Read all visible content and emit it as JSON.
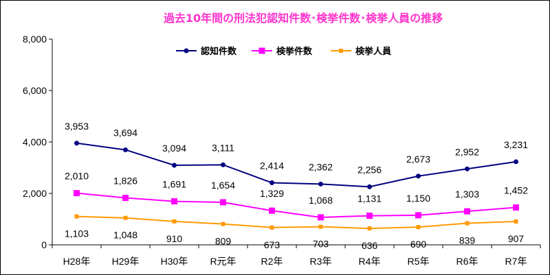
{
  "chart_data": {
    "type": "line",
    "title": "過去10年間の刑法犯認知件数･検挙件数･検挙人員の推移",
    "title_color": "#ff33cc",
    "categories": [
      "H28年",
      "H29年",
      "H30年",
      "R元年",
      "R2年",
      "R3年",
      "R4年",
      "R5年",
      "R6年",
      "R7年"
    ],
    "ylim": [
      0,
      8000
    ],
    "yticks": [
      0,
      2000,
      4000,
      6000,
      8000
    ],
    "ytick_labels": [
      "0",
      "2,000",
      "4,000",
      "6,000",
      "8,000"
    ],
    "grid": false,
    "legend_position": "top-center",
    "series": [
      {
        "name": "認知件数",
        "color": "#000080",
        "marker": "circle",
        "values": [
          3953,
          3694,
          3094,
          3111,
          2414,
          2362,
          2256,
          2673,
          2952,
          3231
        ],
        "labels": [
          "3,953",
          "3,694",
          "3,094",
          "3,111",
          "2,414",
          "2,362",
          "2,256",
          "2,673",
          "2,952",
          "3,231"
        ],
        "label_position": "above"
      },
      {
        "name": "検挙件数",
        "color": "#ff00ff",
        "marker": "square",
        "values": [
          2010,
          1826,
          1691,
          1654,
          1329,
          1068,
          1131,
          1150,
          1303,
          1452
        ],
        "labels": [
          "2,010",
          "1,826",
          "1,691",
          "1,654",
          "1,329",
          "1,068",
          "1,131",
          "1,150",
          "1,303",
          "1,452"
        ],
        "label_position": "above"
      },
      {
        "name": "検挙人員",
        "color": "#ff9900",
        "marker": "triangle",
        "values": [
          1103,
          1048,
          910,
          809,
          673,
          703,
          636,
          690,
          839,
          907
        ],
        "labels": [
          "1,103",
          "1,048",
          "910",
          "809",
          "673",
          "703",
          "636",
          "690",
          "839",
          "907"
        ],
        "label_position": "below"
      }
    ]
  }
}
